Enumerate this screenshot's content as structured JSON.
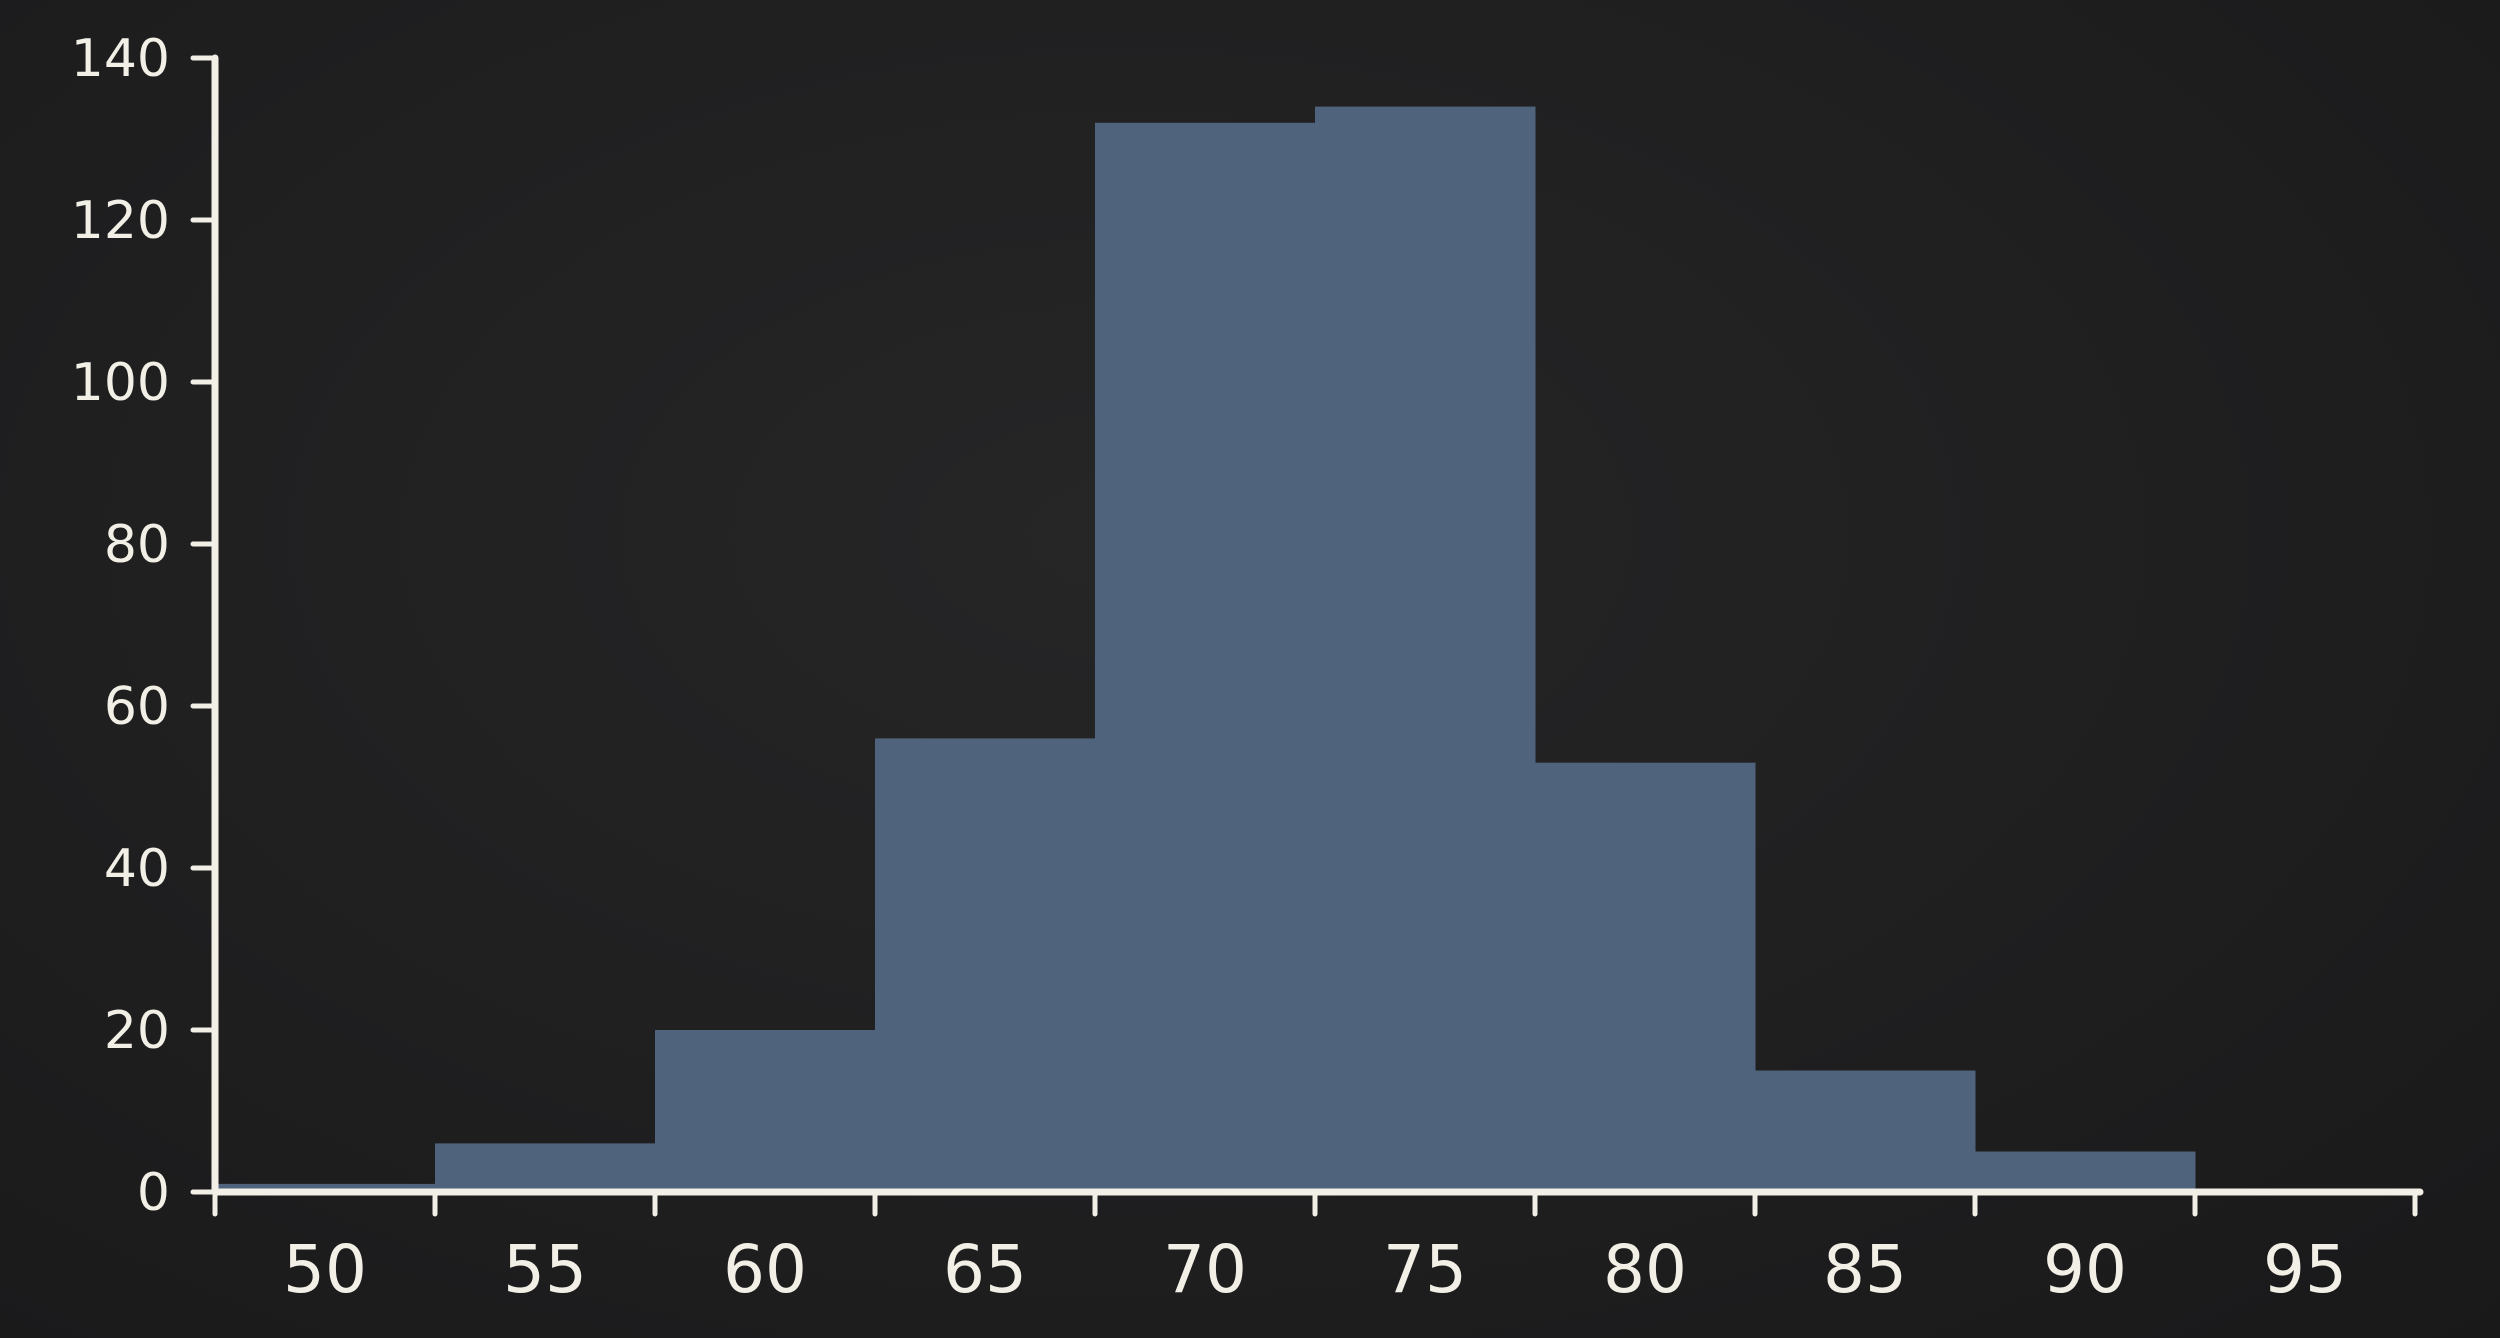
{
  "chart_data": {
    "type": "bar",
    "title": "",
    "xlabel": "",
    "ylabel": "",
    "bar_color": "#50637c",
    "axis_color": "#f2efe6",
    "background_color": "#1e1e1f",
    "grid": false,
    "ylim": [
      0,
      140
    ],
    "y_ticks": [
      "0",
      "20",
      "40",
      "60",
      "80",
      "100",
      "120",
      "140"
    ],
    "categories": [
      "50",
      "55",
      "60",
      "65",
      "70",
      "75",
      "80",
      "85",
      "90",
      "95"
    ],
    "values": [
      1,
      6,
      20,
      56,
      132,
      134,
      53,
      15,
      5,
      0
    ]
  }
}
